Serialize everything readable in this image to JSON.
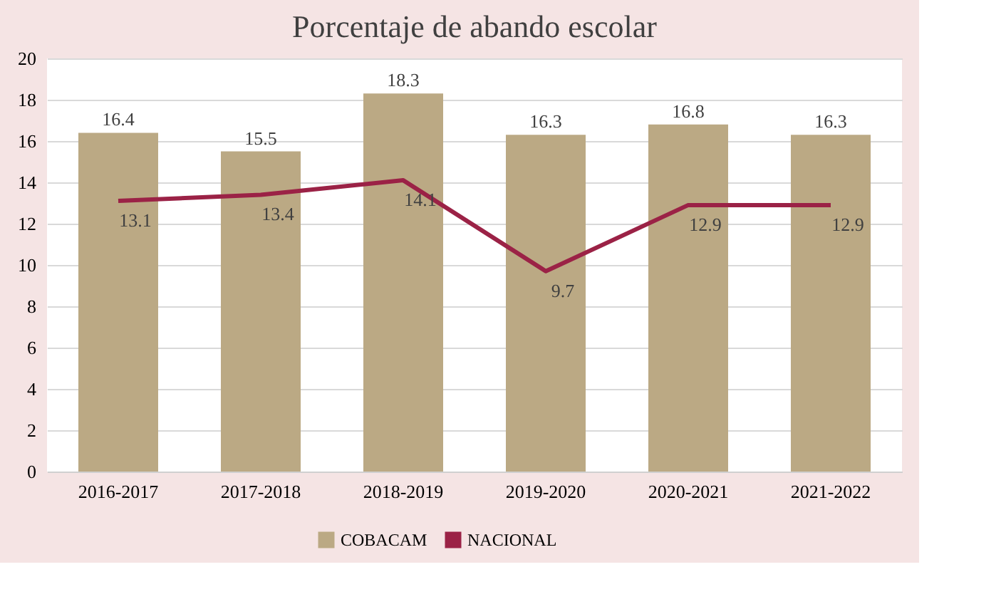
{
  "chart_data": {
    "type": "bar",
    "title": "Porcentaje de abando escolar",
    "categories": [
      "2016-2017",
      "2017-2018",
      "2018-2019",
      "2019-2020",
      "2020-2021",
      "2021-2022"
    ],
    "series": [
      {
        "name": "COBACAM",
        "type": "bar",
        "color": "#bba984",
        "values": [
          16.4,
          15.5,
          18.3,
          16.3,
          16.8,
          16.3
        ]
      },
      {
        "name": "NACIONAL",
        "type": "line",
        "color": "#9b2246",
        "values": [
          13.1,
          13.4,
          14.1,
          9.7,
          12.9,
          12.9
        ]
      }
    ],
    "ylim": [
      0,
      20
    ],
    "yticks": [
      0,
      2,
      4,
      6,
      8,
      10,
      12,
      14,
      16,
      18,
      20
    ],
    "grid": "y",
    "legend": "bottom",
    "data_labels": true,
    "marker": "none",
    "line_style": "solid"
  }
}
